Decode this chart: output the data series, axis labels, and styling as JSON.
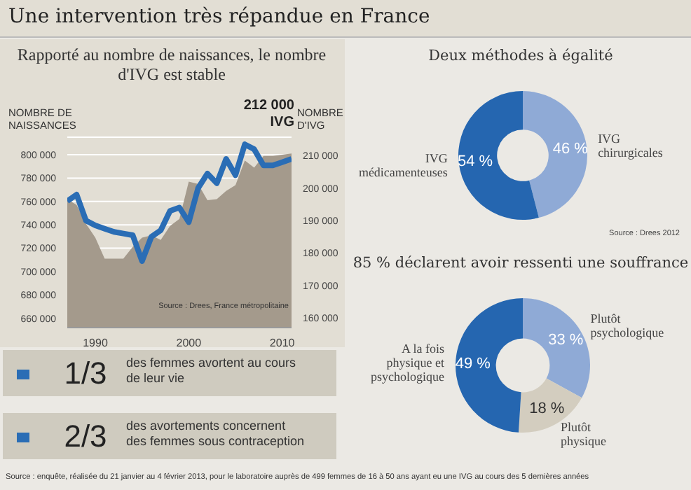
{
  "chart_data": [
    {
      "type": "area",
      "title": "Rapporté au nombre de naissances, le nombre d'IVG est stable",
      "ylabel": "NOMBRE DE NAISSANCES",
      "y2label": "NOMBRE D'IVG",
      "x": [
        1987,
        1988,
        1989,
        1990,
        1991,
        1992,
        1993,
        1994,
        1995,
        1996,
        1997,
        1998,
        1999,
        2000,
        2001,
        2002,
        2003,
        2004,
        2005,
        2006,
        2007,
        2008,
        2009,
        2010,
        2011
      ],
      "series": [
        {
          "type": "area",
          "color": "#a49a8c",
          "values": [
            762000,
            757000,
            741000,
            729000,
            711000,
            711000,
            711000,
            721000,
            729000,
            731000,
            727000,
            739000,
            745000,
            777000,
            775000,
            761000,
            762000,
            769000,
            774000,
            795000,
            789000,
            799000,
            799000,
            800000,
            801000
          ]
        },
        {
          "type": "line",
          "axis": "y2",
          "color": "#2a6db5",
          "values": [
            196000,
            198000,
            190000,
            188500,
            187500,
            186500,
            186000,
            185500,
            177500,
            185000,
            187000,
            193000,
            194000,
            189500,
            200000,
            204500,
            201500,
            209000,
            204000,
            213500,
            212000,
            207000,
            207000,
            208000,
            209000
          ]
        }
      ],
      "xlim": [
        1987,
        2011
      ],
      "xticks": [
        1990,
        2000,
        2010
      ],
      "ylim": [
        652000,
        815000
      ],
      "yticks": [
        {
          "value": 660000,
          "label": "660 000"
        },
        {
          "value": 680000,
          "label": "680 000"
        },
        {
          "value": 700000,
          "label": "700 000"
        },
        {
          "value": 720000,
          "label": "720 000"
        },
        {
          "value": 740000,
          "label": "740 000"
        },
        {
          "value": 760000,
          "label": "760 000"
        },
        {
          "value": 780000,
          "label": "780 000"
        },
        {
          "value": 800000,
          "label": "800 000"
        }
      ],
      "y2lim": [
        157000,
        215700
      ],
      "y2ticks": [
        {
          "value": 160000,
          "label": "160 000"
        },
        {
          "value": 170000,
          "label": "170 000"
        },
        {
          "value": 180000,
          "label": "180 000"
        },
        {
          "value": 190000,
          "label": "190 000"
        },
        {
          "value": 200000,
          "label": "200 000"
        },
        {
          "value": 210000,
          "label": "210 000"
        }
      ],
      "grid": "y",
      "annotations": [
        "212 000 IVG",
        "Source : Drees, France métropolitaine"
      ]
    },
    {
      "type": "donut",
      "title": "Deux méthodes à égalité",
      "categories": [
        "IVG chirurgicales",
        "IVG médicamenteuses"
      ],
      "values": [
        46,
        54
      ],
      "colors": [
        "#8faad6",
        "#2566b0"
      ],
      "value_labels": [
        "46 %",
        "54 %"
      ],
      "annotations": [
        "Source : Drees 2012"
      ]
    },
    {
      "type": "donut",
      "title": "85 % déclarent avoir ressenti une souffrance",
      "categories": [
        "Plutôt psychologique",
        "Plutôt physique",
        "A la fois physique et psychologique"
      ],
      "values": [
        33,
        18,
        49
      ],
      "colors": [
        "#8faad6",
        "#d3cdbf",
        "#2566b0"
      ],
      "value_labels": [
        "33 %",
        "18 %",
        "49 %"
      ]
    },
    {
      "type": "other",
      "title": "Une intervention très répandue en France",
      "annotations": [
        "1/3",
        "des femmes avortent au cours de leur vie",
        "2/3",
        "des avortements concernent des femmes sous contraception",
        "Source : enquête, réalisée du 21 janvier au 4 février 2013, pour le laboratoire auprès de 499 femmes de 16 à 50 ans ayant eu une IVG au cours des 5 dernières années"
      ]
    }
  ]
}
